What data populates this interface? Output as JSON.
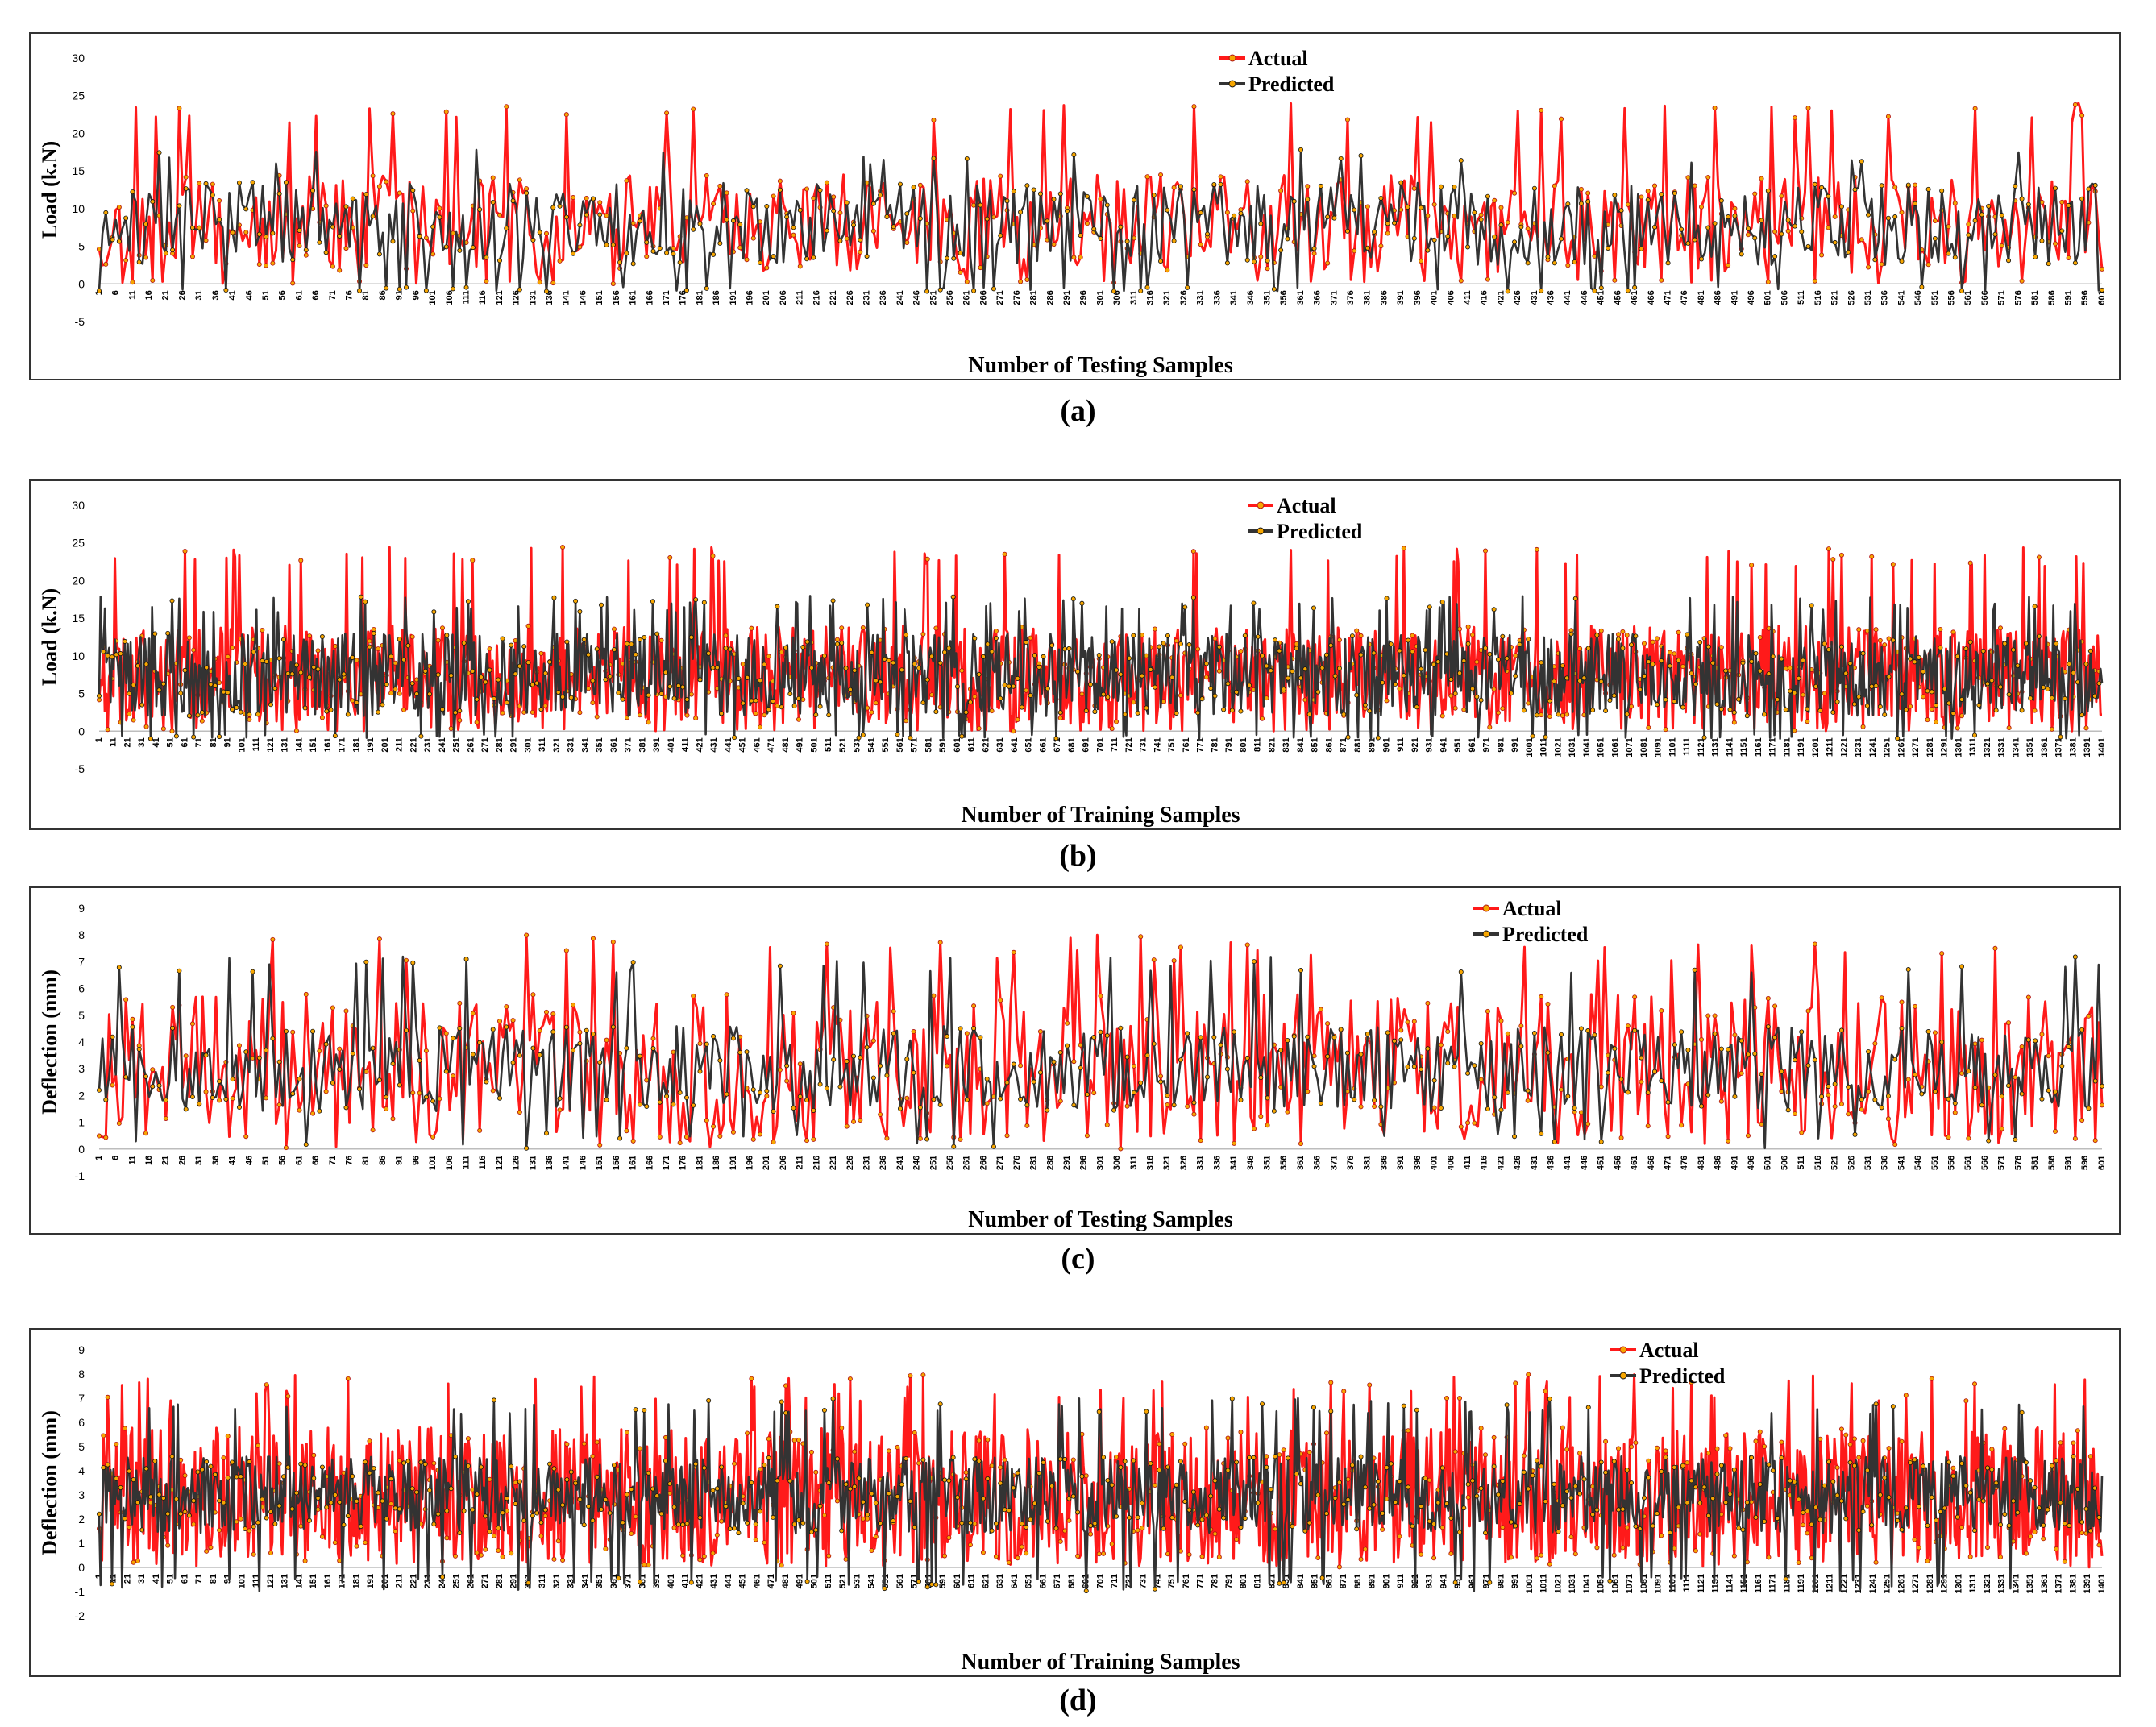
{
  "colors": {
    "actual": "#ff1a1a",
    "predicted": "#333333",
    "marker_fill": "#f7a600"
  },
  "chart_data": [
    {
      "id": "a",
      "type": "line",
      "caption": "(a)",
      "ylabel": "Load (k.N)",
      "xlabel": "Number of Testing Samples",
      "ylim": [
        -5,
        30
      ],
      "yticks": [
        -5,
        0,
        5,
        10,
        15,
        20,
        25,
        30
      ],
      "n_points": 601,
      "tick_step": 5,
      "legend": [
        "Actual",
        "Predicted"
      ],
      "legend_position": "top-center",
      "series": [
        {
          "name": "Actual",
          "mean": 8,
          "amplitude": 6.5,
          "peak": 24,
          "min": 0,
          "seed": 11
        },
        {
          "name": "Predicted",
          "mean": 8,
          "amplitude": 5.5,
          "peak": 18,
          "min": -1,
          "seed": 12
        }
      ]
    },
    {
      "id": "b",
      "type": "line",
      "caption": "(b)",
      "ylabel": "Load (k.N)",
      "xlabel": "Number of Training Samples",
      "ylim": [
        -5,
        30
      ],
      "yticks": [
        -5,
        0,
        5,
        10,
        15,
        20,
        25,
        30
      ],
      "n_points": 1401,
      "tick_step": 10,
      "legend": [
        "Actual",
        "Predicted"
      ],
      "legend_position": "top-center",
      "series": [
        {
          "name": "Actual",
          "mean": 7.5,
          "amplitude": 6.5,
          "peak": 24.5,
          "min": 0,
          "seed": 21
        },
        {
          "name": "Predicted",
          "mean": 7.5,
          "amplitude": 5.5,
          "peak": 18,
          "min": -1,
          "seed": 22
        }
      ]
    },
    {
      "id": "c",
      "type": "line",
      "caption": "(c)",
      "ylabel": "Deflection (mm)",
      "xlabel": "Number of Testing Samples",
      "ylim": [
        -1,
        9
      ],
      "yticks": [
        -1,
        0,
        1,
        2,
        3,
        4,
        5,
        6,
        7,
        8,
        9
      ],
      "n_points": 601,
      "tick_step": 5,
      "legend": [
        "Actual",
        "Predicted"
      ],
      "legend_position": "top-right",
      "series": [
        {
          "name": "Actual",
          "mean": 3,
          "amplitude": 2.8,
          "peak": 8,
          "min": 0,
          "seed": 31
        },
        {
          "name": "Predicted",
          "mean": 3,
          "amplitude": 1.6,
          "peak": 7.2,
          "min": 0,
          "seed": 32
        }
      ]
    },
    {
      "id": "d",
      "type": "line",
      "caption": "(d)",
      "ylabel": "Deflection (mm)",
      "xlabel": "Number of Training Samples",
      "ylim": [
        -2,
        9
      ],
      "yticks": [
        -2,
        -1,
        0,
        1,
        2,
        3,
        4,
        5,
        6,
        7,
        8,
        9
      ],
      "n_points": 1401,
      "tick_step": 10,
      "legend": [
        "Actual",
        "Predicted"
      ],
      "legend_position": "top-right",
      "series": [
        {
          "name": "Actual",
          "mean": 3,
          "amplitude": 2.8,
          "peak": 8,
          "min": 0,
          "seed": 41
        },
        {
          "name": "Predicted",
          "mean": 3,
          "amplitude": 1.6,
          "peak": 7,
          "min": -1,
          "seed": 42
        }
      ]
    }
  ]
}
